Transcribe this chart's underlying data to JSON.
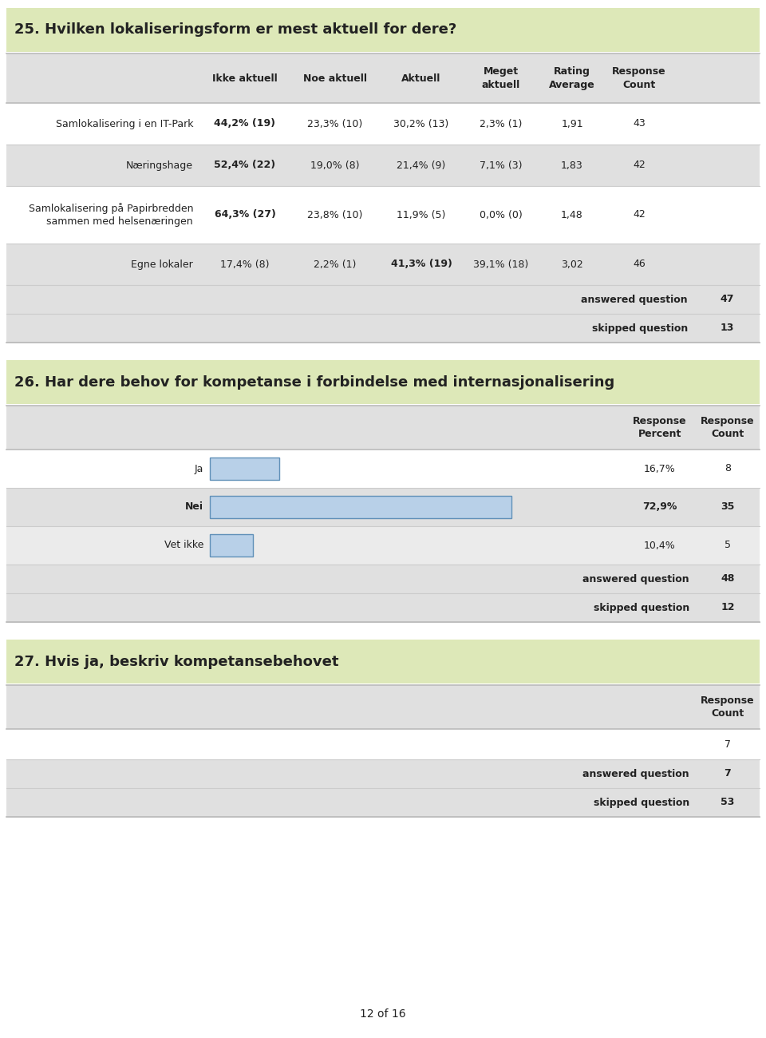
{
  "q25_title": "25. Hvilken lokaliseringsform er mest aktuell for dere?",
  "q25_headers": [
    "Ikke aktuell",
    "Noe aktuell",
    "Aktuell",
    "Meget\naktuell",
    "Rating\nAverage",
    "Response\nCount"
  ],
  "q25_rows": [
    {
      "label": "Samlokalisering i en IT-Park",
      "cols": [
        "44,2% (19)",
        "23,3% (10)",
        "30,2% (13)",
        "2,3% (1)",
        "1,91",
        "43"
      ],
      "bold_col": 0
    },
    {
      "label": "Næringshage",
      "cols": [
        "52,4% (22)",
        "19,0% (8)",
        "21,4% (9)",
        "7,1% (3)",
        "1,83",
        "42"
      ],
      "bold_col": 0
    },
    {
      "label": "Samlokalisering på Papirbredden\nsammen med helsenæringen",
      "cols": [
        "64,3% (27)",
        "23,8% (10)",
        "11,9% (5)",
        "0,0% (0)",
        "1,48",
        "42"
      ],
      "bold_col": 0
    },
    {
      "label": "Egne lokaler",
      "cols": [
        "17,4% (8)",
        "2,2% (1)",
        "41,3% (19)",
        "39,1% (18)",
        "3,02",
        "46"
      ],
      "bold_col": 2
    }
  ],
  "q25_answered": 47,
  "q25_skipped": 13,
  "q26_title": "26. Har dere behov for kompetanse i forbindelse med internasjonalisering",
  "q26_rows": [
    {
      "label": "Ja",
      "pct": 16.7,
      "pct_str": "16,7%",
      "count": 8,
      "bold": false
    },
    {
      "label": "Nei",
      "pct": 72.9,
      "pct_str": "72,9%",
      "count": 35,
      "bold": true
    },
    {
      "label": "Vet ikke",
      "pct": 10.4,
      "pct_str": "10,4%",
      "count": 5,
      "bold": false
    }
  ],
  "q26_answered": 48,
  "q26_skipped": 12,
  "q26_bar_color": "#b8d0e8",
  "q26_bar_border": "#6090b8",
  "q27_title": "27. Hvis ja, beskriv kompetansebehovet",
  "q27_response_count": 7,
  "q27_answered": 7,
  "q27_skipped": 53,
  "title_bg": "#dde8b8",
  "row_bg_dark": "#e0e0e0",
  "row_bg_light": "#ebebeb",
  "row_bg_white": "#ffffff",
  "outer_border": "#bbbbbb",
  "line_color": "#cccccc",
  "text_color": "#222222",
  "footer_text": "12 of 16"
}
